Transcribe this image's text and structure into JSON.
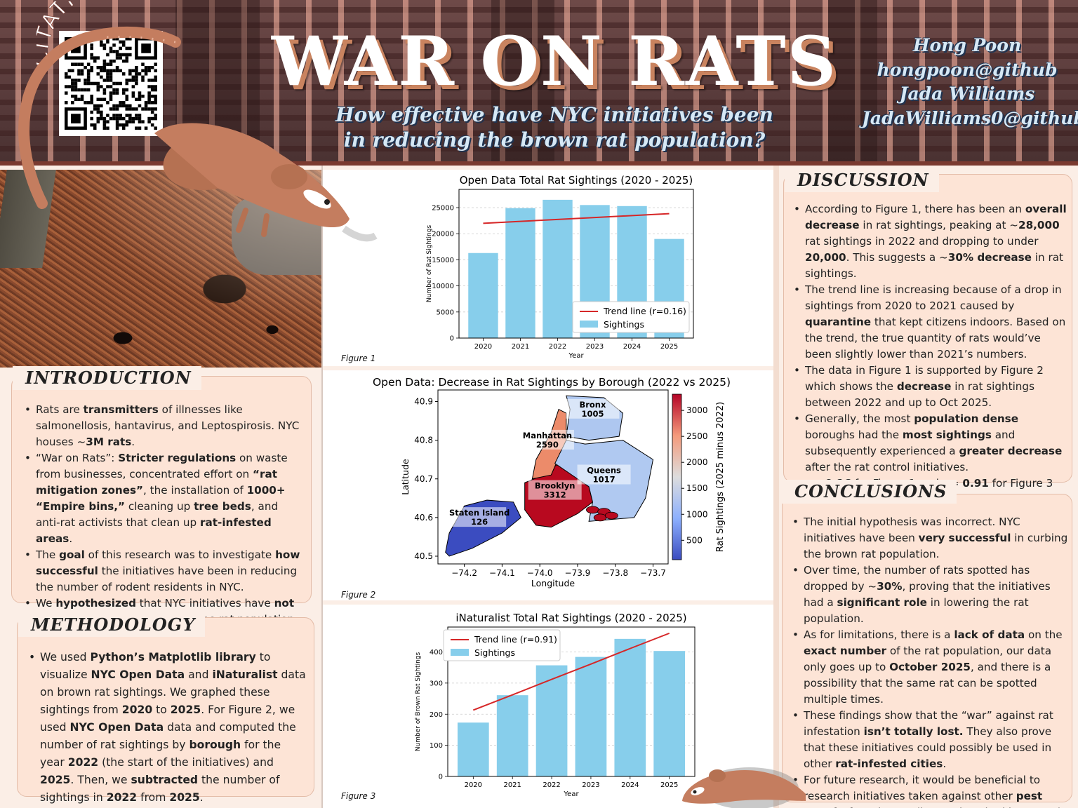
{
  "header": {
    "title": "WAR ON RATS",
    "subtitle": "How effective have NYC initiatives been in reducing the brown rat population?",
    "citations_label": "CITATIONS",
    "authors": [
      "Hong Poon",
      "hongpoon@github",
      "Jada Williams",
      "JadaWilliams0@github"
    ]
  },
  "introduction": {
    "heading": "INTRODUCTION",
    "items": [
      [
        [
          "Rats are ",
          false
        ],
        [
          "transmitters",
          true
        ],
        [
          " of illnesses like salmonellosis, hantavirus, and Leptospirosis. NYC houses ~",
          false
        ],
        [
          "3M rats",
          true
        ],
        [
          ".",
          false
        ]
      ],
      [
        [
          "“War on Rats”:  ",
          false
        ],
        [
          "Stricter regulations",
          true
        ],
        [
          " on waste from businesses, concentrated effort on ",
          false
        ],
        [
          "“rat mitigation zones”",
          true
        ],
        [
          ", the installation of ",
          false
        ],
        [
          "1000+ “Empire bins,”",
          true
        ],
        [
          " cleaning up ",
          false
        ],
        [
          "tree beds",
          true
        ],
        [
          ", and anti-rat activists that clean up ",
          false
        ],
        [
          "rat-infested areas",
          true
        ],
        [
          ".",
          false
        ]
      ],
      [
        [
          "The ",
          false
        ],
        [
          "goal",
          true
        ],
        [
          " of this research was to investigate ",
          false
        ],
        [
          "how successful",
          true
        ],
        [
          " the initiatives have been in reducing the number of rodent residents in NYC.",
          false
        ]
      ],
      [
        [
          "We ",
          false
        ],
        [
          "hypothesized",
          true
        ],
        [
          " that NYC initiatives have ",
          false
        ],
        [
          "not been successful",
          true
        ],
        [
          " at lowering the rat population.",
          false
        ]
      ]
    ]
  },
  "methodology": {
    "heading": "METHODOLOGY",
    "items": [
      [
        [
          "We used ",
          false
        ],
        [
          "Python’s Matplotlib library",
          true
        ],
        [
          " to visualize ",
          false
        ],
        [
          "NYC Open Data",
          true
        ],
        [
          " and ",
          false
        ],
        [
          "iNaturalist",
          true
        ],
        [
          " data on brown rat sightings. We graphed these sightings from ",
          false
        ],
        [
          "2020",
          true
        ],
        [
          " to ",
          false
        ],
        [
          "2025",
          true
        ],
        [
          ". For Figure 2, we used ",
          false
        ],
        [
          "NYC Open Data",
          true
        ],
        [
          " data and computed the number of rat sightings by ",
          false
        ],
        [
          "borough",
          true
        ],
        [
          " for the year ",
          false
        ],
        [
          "2022",
          true
        ],
        [
          " (the start of the initiatives) and ",
          false
        ],
        [
          "2025",
          true
        ],
        [
          ". Then, we ",
          false
        ],
        [
          "subtracted",
          true
        ],
        [
          " the number of sightings in ",
          false
        ],
        [
          "2022",
          true
        ],
        [
          " from ",
          false
        ],
        [
          "2025",
          true
        ],
        [
          ".",
          false
        ]
      ]
    ]
  },
  "discussion": {
    "heading": "DISCUSSION",
    "items": [
      [
        [
          "According to Figure 1, there has been an ",
          false
        ],
        [
          "overall decrease",
          true
        ],
        [
          " in rat sightings, peaking at ~",
          false
        ],
        [
          "28,000",
          true
        ],
        [
          " rat sightings in 2022 and dropping to under ",
          false
        ],
        [
          "20,000",
          true
        ],
        [
          ". This suggests a ~",
          false
        ],
        [
          "30% decrease",
          true
        ],
        [
          " in rat sightings.",
          false
        ]
      ],
      [
        [
          "The trend line is increasing because of a drop in sightings from 2020 to 2021 caused by ",
          false
        ],
        [
          "quarantine",
          true
        ],
        [
          " that kept citizens indoors. Based on the trend, the true quantity of rats would’ve been slightly lower than 2021’s numbers.",
          false
        ]
      ],
      [
        [
          "The data in Figure 1 is supported by Figure 2 which shows the ",
          false
        ],
        [
          "decrease",
          true
        ],
        [
          " in rat sightings between 2022 and up to Oct 2025.",
          false
        ]
      ],
      [
        [
          "Generally, the most ",
          false
        ],
        [
          "population dense",
          true
        ],
        [
          " boroughs had the ",
          false
        ],
        [
          "most sightings",
          true
        ],
        [
          " and subsequently experienced a ",
          false
        ],
        [
          "greater decrease",
          true
        ],
        [
          " after the rat control initiatives.",
          false
        ]
      ],
      [
        [
          "r = ",
          false
        ],
        [
          "0.16",
          true
        ],
        [
          " for Figure 1 and r = ",
          false
        ],
        [
          "0.91",
          true
        ],
        [
          " for Figure 3",
          false
        ]
      ]
    ]
  },
  "conclusions": {
    "heading": "CONCLUSIONS",
    "items": [
      [
        [
          "The initial hypothesis was incorrect. NYC initiatives have been ",
          false
        ],
        [
          "very successful",
          true
        ],
        [
          " in curbing the brown rat population.",
          false
        ]
      ],
      [
        [
          "Over time, the number of rats spotted has dropped by ~",
          false
        ],
        [
          "30%",
          true
        ],
        [
          ", proving that the initiatives had a ",
          false
        ],
        [
          "significant role",
          true
        ],
        [
          " in lowering the rat population.",
          false
        ]
      ],
      [
        [
          "As for limitations, there is a ",
          false
        ],
        [
          "lack of data",
          true
        ],
        [
          " on the ",
          false
        ],
        [
          "exact number",
          true
        ],
        [
          " of the rat population, our data only goes up to ",
          false
        ],
        [
          "October 2025",
          true
        ],
        [
          ", and there is a possibility that the same rat can be spotted multiple times.",
          false
        ]
      ],
      [
        [
          "These findings show that the “war” against rat infestation ",
          false
        ],
        [
          "isn’t totally lost.",
          true
        ],
        [
          " They also prove that these initiatives could possibly be used in other ",
          false
        ],
        [
          "rat-infested cities",
          true
        ],
        [
          ".",
          false
        ]
      ],
      [
        [
          "For future research, it would be beneficial to research initiatives taken against other ",
          false
        ],
        [
          "pest populations",
          true
        ],
        [
          " in NYC (ie. roaches, bed bugs, etc).",
          false
        ]
      ]
    ]
  },
  "figures": {
    "fig1_caption": "Figure 1",
    "fig2_caption": "Figure 2",
    "fig3_caption": "Figure 3"
  },
  "colors": {
    "bar": "#87ceeb",
    "trend": "#d62728",
    "box": "#fde4d6",
    "header_shadow": "#c9835f",
    "subtitle_text": "#d6e8f5"
  },
  "chart_data": [
    {
      "type": "bar",
      "title": "Open Data Total Rat Sightings (2020 - 2025)",
      "xlabel": "Year",
      "ylabel": "Number of Rat Sightings",
      "categories": [
        "2020",
        "2021",
        "2022",
        "2023",
        "2024",
        "2025"
      ],
      "series": [
        {
          "name": "Sightings",
          "values": [
            16300,
            24900,
            26500,
            25500,
            25300,
            19000
          ]
        },
        {
          "name": "Trend line (r=0.16)",
          "type": "line",
          "values": [
            22000,
            22370,
            22740,
            23110,
            23480,
            23850
          ]
        }
      ],
      "yticks": [
        0,
        5000,
        10000,
        15000,
        20000,
        25000
      ],
      "ylim": [
        0,
        28500
      ],
      "grid": "y",
      "legend": "lower right"
    },
    {
      "type": "choropleth",
      "title": "Open Data: Decrease in Rat Sightings by Borough (2022 vs 2025)",
      "xlabel": "Longitude",
      "ylabel": "Latitude",
      "colorbar_label": "Rat Sightings (2025 minus 2022)",
      "xticks": [
        "−74.2",
        "−74.1",
        "−74.0",
        "−73.9",
        "−73.8",
        "−73.7"
      ],
      "yticks": [
        "40.5",
        "40.6",
        "40.7",
        "40.8",
        "40.9"
      ],
      "colorbar_ticks": [
        "500",
        "1000",
        "1500",
        "2000",
        "2500",
        "3000"
      ],
      "colorbar_range": [
        126,
        3312
      ],
      "boroughs": [
        {
          "name": "Bronx",
          "value": 1005,
          "color": "#aec7f0"
        },
        {
          "name": "Manhattan",
          "value": 2590,
          "color": "#ec8b6a"
        },
        {
          "name": "Queens",
          "value": 1017,
          "color": "#b0c9f1"
        },
        {
          "name": "Brooklyn",
          "value": 3312,
          "color": "#b8091f"
        },
        {
          "name": "Staten Island",
          "value": 126,
          "color": "#3b4cc0"
        }
      ]
    },
    {
      "type": "bar",
      "title": "iNaturalist Total Rat Sightings (2020 - 2025)",
      "xlabel": "Year",
      "ylabel": "Number of Brown Rat Sightings",
      "categories": [
        "2020",
        "2021",
        "2022",
        "2023",
        "2024",
        "2025"
      ],
      "series": [
        {
          "name": "Sightings",
          "values": [
            173,
            261,
            357,
            384,
            442,
            403
          ]
        },
        {
          "name": "Trend line (r=0.91)",
          "type": "line",
          "values": [
            213,
            262,
            312,
            361,
            411,
            460
          ]
        }
      ],
      "yticks": [
        0,
        100,
        200,
        300,
        400
      ],
      "ylim": [
        0,
        480
      ],
      "grid": "y",
      "legend": "upper left"
    }
  ]
}
